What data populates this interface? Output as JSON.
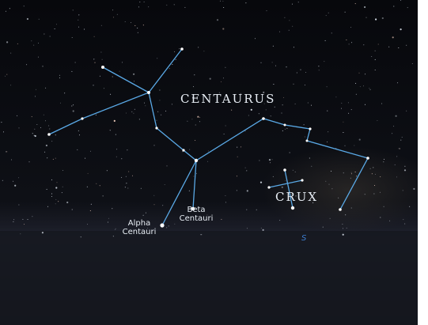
{
  "labels": {
    "centaurus": "CENTAURUS",
    "crux": "CRUX",
    "alpha_centauri": "Alpha Centauri",
    "beta_centauri": "Beta Centauri",
    "south": "S"
  }
}
